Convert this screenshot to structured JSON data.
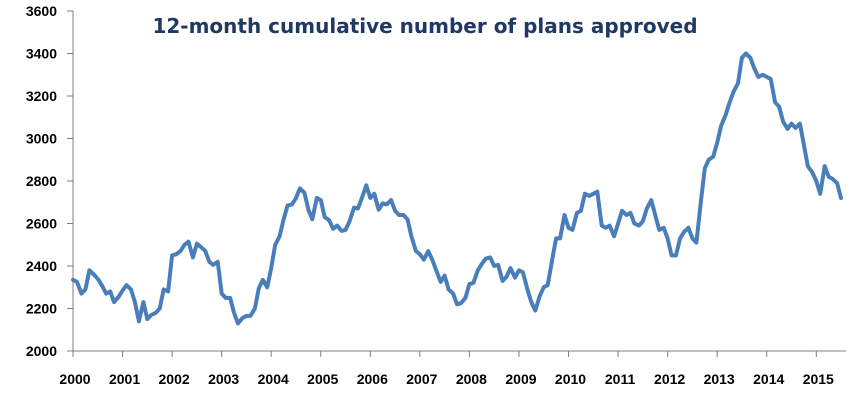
{
  "chart_data": {
    "type": "line",
    "title": "12-month cumulative number of plans approved",
    "xlabel": "",
    "ylabel": "",
    "ylim": [
      2000,
      3600
    ],
    "yticks": [
      2000,
      2200,
      2400,
      2600,
      2800,
      3000,
      3200,
      3400,
      3600
    ],
    "xlim": [
      2000,
      2015.6
    ],
    "xticks": [
      2000,
      2001,
      2002,
      2003,
      2004,
      2005,
      2006,
      2007,
      2008,
      2009,
      2010,
      2011,
      2012,
      2013,
      2014,
      2015
    ],
    "grid": false,
    "legend": "none",
    "line_color": "#4a7ebb",
    "series": [
      {
        "x": [
          2000.0,
          2000.08,
          2000.17,
          2000.25,
          2000.33,
          2000.42,
          2000.5,
          2000.58,
          2000.67,
          2000.75,
          2000.83,
          2000.92,
          2001.0,
          2001.08,
          2001.17,
          2001.25,
          2001.33,
          2001.42,
          2001.5,
          2001.58,
          2001.67,
          2001.75,
          2001.83,
          2001.92,
          2002.0,
          2002.08,
          2002.17,
          2002.25,
          2002.33,
          2002.42,
          2002.5,
          2002.58,
          2002.67,
          2002.75,
          2002.83,
          2002.92,
          2003.0,
          2003.08,
          2003.17,
          2003.25,
          2003.33,
          2003.42,
          2003.5,
          2003.58,
          2003.67,
          2003.75,
          2003.83,
          2003.92,
          2004.0,
          2004.08,
          2004.17,
          2004.25,
          2004.33,
          2004.42,
          2004.5,
          2004.58,
          2004.67,
          2004.75,
          2004.83,
          2004.92,
          2005.0,
          2005.08,
          2005.17,
          2005.25,
          2005.33,
          2005.42,
          2005.5,
          2005.58,
          2005.67,
          2005.75,
          2005.83,
          2005.92,
          2006.0,
          2006.08,
          2006.17,
          2006.25,
          2006.33,
          2006.42,
          2006.5,
          2006.58,
          2006.67,
          2006.75,
          2006.83,
          2006.92,
          2007.0,
          2007.08,
          2007.17,
          2007.25,
          2007.33,
          2007.42,
          2007.5,
          2007.58,
          2007.67,
          2007.75,
          2007.83,
          2007.92,
          2008.0,
          2008.08,
          2008.17,
          2008.25,
          2008.33,
          2008.42,
          2008.5,
          2008.58,
          2008.67,
          2008.75,
          2008.83,
          2008.92,
          2009.0,
          2009.08,
          2009.17,
          2009.25,
          2009.33,
          2009.42,
          2009.5,
          2009.58,
          2009.67,
          2009.75,
          2009.83,
          2009.92,
          2010.0,
          2010.08,
          2010.17,
          2010.25,
          2010.33,
          2010.42,
          2010.5,
          2010.58,
          2010.67,
          2010.75,
          2010.83,
          2010.92,
          2011.0,
          2011.08,
          2011.17,
          2011.25,
          2011.33,
          2011.42,
          2011.5,
          2011.58,
          2011.67,
          2011.75,
          2011.83,
          2011.92,
          2012.0,
          2012.08,
          2012.17,
          2012.25,
          2012.33,
          2012.42,
          2012.5,
          2012.58,
          2012.67,
          2012.75,
          2012.83,
          2012.92,
          2013.0,
          2013.08,
          2013.17,
          2013.25,
          2013.33,
          2013.42,
          2013.5,
          2013.58,
          2013.67,
          2013.75,
          2013.83,
          2013.92,
          2014.0,
          2014.08,
          2014.17,
          2014.25,
          2014.33,
          2014.42,
          2014.5,
          2014.58,
          2014.67,
          2014.75,
          2014.83,
          2014.92,
          2015.0,
          2015.08,
          2015.17,
          2015.25,
          2015.33,
          2015.42,
          2015.5
        ],
        "y": [
          2335,
          2325,
          2270,
          2290,
          2380,
          2360,
          2340,
          2310,
          2270,
          2280,
          2230,
          2255,
          2285,
          2310,
          2290,
          2230,
          2140,
          2230,
          2150,
          2170,
          2180,
          2200,
          2290,
          2280,
          2450,
          2455,
          2470,
          2500,
          2515,
          2440,
          2505,
          2490,
          2470,
          2420,
          2405,
          2420,
          2270,
          2250,
          2250,
          2180,
          2130,
          2155,
          2165,
          2165,
          2200,
          2295,
          2335,
          2300,
          2390,
          2500,
          2540,
          2620,
          2685,
          2690,
          2720,
          2765,
          2745,
          2665,
          2620,
          2720,
          2710,
          2630,
          2615,
          2575,
          2590,
          2565,
          2570,
          2610,
          2675,
          2670,
          2720,
          2780,
          2720,
          2740,
          2665,
          2695,
          2690,
          2710,
          2660,
          2640,
          2640,
          2620,
          2540,
          2470,
          2455,
          2430,
          2470,
          2430,
          2380,
          2325,
          2355,
          2290,
          2270,
          2220,
          2225,
          2250,
          2315,
          2320,
          2380,
          2410,
          2435,
          2440,
          2400,
          2405,
          2330,
          2350,
          2390,
          2345,
          2380,
          2370,
          2290,
          2230,
          2190,
          2260,
          2300,
          2310,
          2430,
          2530,
          2530,
          2640,
          2580,
          2570,
          2650,
          2660,
          2740,
          2730,
          2740,
          2750,
          2590,
          2580,
          2590,
          2540,
          2600,
          2660,
          2640,
          2650,
          2600,
          2590,
          2610,
          2670,
          2710,
          2640,
          2570,
          2580,
          2530,
          2450,
          2450,
          2530,
          2560,
          2580,
          2530,
          2510,
          2700,
          2860,
          2900,
          2915,
          2980,
          3060,
          3110,
          3170,
          3220,
          3260,
          3380,
          3400,
          3380,
          3330,
          3290,
          3300,
          3290,
          3280,
          3170,
          3150,
          3080,
          3045,
          3070,
          3050,
          3070,
          2970,
          2870,
          2840,
          2800,
          2740,
          2870,
          2820,
          2810,
          2790,
          2720
        ]
      }
    ]
  }
}
